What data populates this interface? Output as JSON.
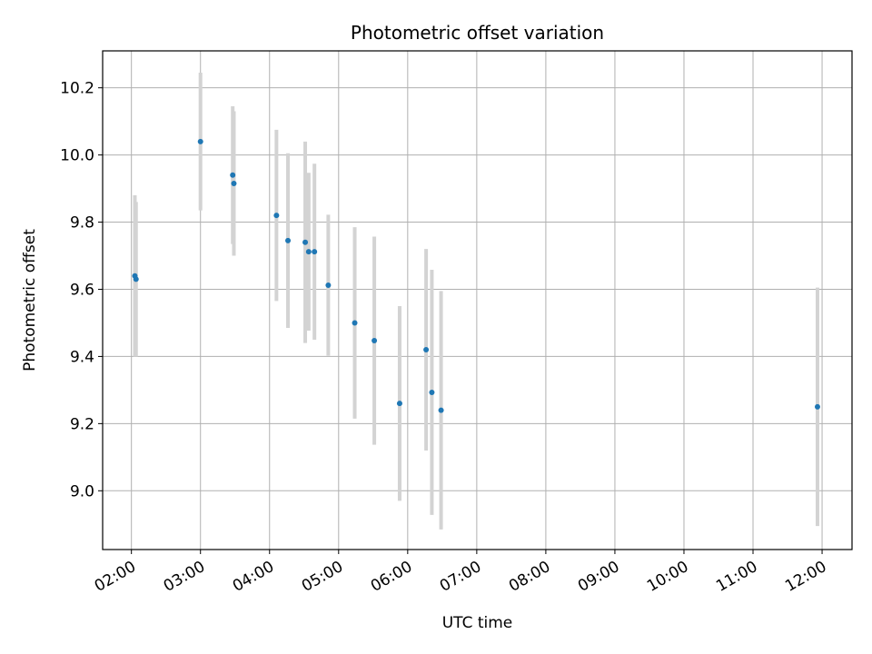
{
  "chart_data": {
    "type": "scatter",
    "title": "Photometric offset variation",
    "xlabel": "UTC time",
    "ylabel": "Photometric offset",
    "x_axis_type": "time",
    "xlim": [
      "01:35",
      "12:26"
    ],
    "ylim": [
      8.825,
      10.31
    ],
    "grid": true,
    "point_color": "#1f77b4",
    "errorbar_color": "#d3d3d3",
    "x_ticks": [
      "02:00",
      "03:00",
      "04:00",
      "05:00",
      "06:00",
      "07:00",
      "08:00",
      "09:00",
      "10:00",
      "11:00",
      "12:00"
    ],
    "y_ticks": [
      "9.0",
      "9.2",
      "9.4",
      "9.6",
      "9.8",
      "10.0",
      "10.2"
    ],
    "points": [
      {
        "x": "02:03",
        "y": 9.64,
        "yerr": 0.24
      },
      {
        "x": "02:04",
        "y": 9.63,
        "yerr": 0.23
      },
      {
        "x": "03:00",
        "y": 10.04,
        "yerr": 0.205
      },
      {
        "x": "03:28",
        "y": 9.94,
        "yerr": 0.205
      },
      {
        "x": "03:29",
        "y": 9.915,
        "yerr": 0.215
      },
      {
        "x": "04:06",
        "y": 9.82,
        "yerr": 0.255
      },
      {
        "x": "04:16",
        "y": 9.745,
        "yerr": 0.26
      },
      {
        "x": "04:31",
        "y": 9.74,
        "yerr": 0.3
      },
      {
        "x": "04:34",
        "y": 9.712,
        "yerr": 0.235
      },
      {
        "x": "04:39",
        "y": 9.712,
        "yerr": 0.262
      },
      {
        "x": "04:51",
        "y": 9.612,
        "yerr": 0.21
      },
      {
        "x": "05:14",
        "y": 9.5,
        "yerr": 0.285
      },
      {
        "x": "05:31",
        "y": 9.447,
        "yerr": 0.31
      },
      {
        "x": "05:53",
        "y": 9.26,
        "yerr": 0.29
      },
      {
        "x": "06:16",
        "y": 9.42,
        "yerr": 0.3
      },
      {
        "x": "06:21",
        "y": 9.293,
        "yerr": 0.365
      },
      {
        "x": "06:29",
        "y": 9.24,
        "yerr": 0.355
      },
      {
        "x": "11:56",
        "y": 9.25,
        "yerr": 0.355
      }
    ]
  }
}
